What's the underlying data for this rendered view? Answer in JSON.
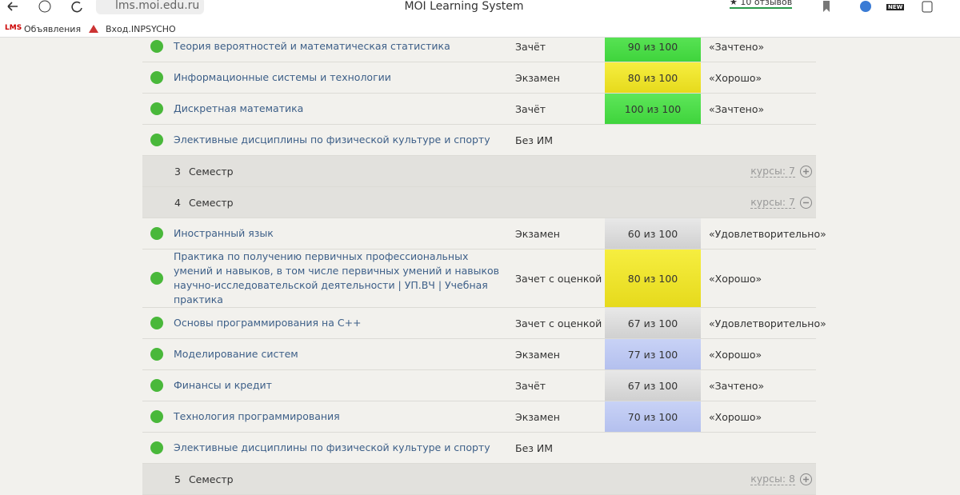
{
  "browser": {
    "url": "lms.moi.edu.ru",
    "tab_title": "MOI Learning System",
    "reviews": "★ 10 отзывов",
    "badge": "NEW",
    "bookmarks": [
      {
        "icon": "LMS",
        "label": "Объявления"
      },
      {
        "label": "Вход.INPSYCHO"
      }
    ]
  },
  "rows": [
    {
      "kind": "course",
      "name": "Теория вероятностей и математическая статистика",
      "control": "Зачёт",
      "score": "90 из 100",
      "grade": "«Зачтено»",
      "color": "green"
    },
    {
      "kind": "course",
      "name": "Информационные системы и технологии",
      "control": "Экзамен",
      "score": "80 из 100",
      "grade": "«Хорошо»",
      "color": "yellow"
    },
    {
      "kind": "course",
      "name": "Дискретная математика",
      "control": "Зачёт",
      "score": "100 из 100",
      "grade": "«Зачтено»",
      "color": "green"
    },
    {
      "kind": "course",
      "name": "Элективные дисциплины по физической культуре и спорту",
      "control": "Без ИМ"
    },
    {
      "kind": "semester",
      "number": "3",
      "label": "Семестр",
      "courses": "курсы: 7",
      "expanded": false
    },
    {
      "kind": "semester",
      "number": "4",
      "label": "Семестр",
      "courses": "курсы: 7",
      "expanded": true
    },
    {
      "kind": "course",
      "name": "Иностранный язык",
      "control": "Экзамен",
      "score": "60 из 100",
      "grade": "«Удовлетворительно»",
      "color": "gray"
    },
    {
      "kind": "course",
      "name": "Практика по получению первичных профессиональных умений и навыков, в том числе первичных умений и навыков научно-исследовательской деятельности | УП.ВЧ | Учебная практика",
      "control": "Зачет с оценкой",
      "score": "80 из 100",
      "grade": "«Хорошо»",
      "color": "yellow"
    },
    {
      "kind": "course",
      "name": "Основы программирования на С++",
      "control": "Зачет с оценкой",
      "score": "67 из 100",
      "grade": "«Удовлетворительно»",
      "color": "gray"
    },
    {
      "kind": "course",
      "name": "Моделирование систем",
      "control": "Экзамен",
      "score": "77 из 100",
      "grade": "«Хорошо»",
      "color": "blue"
    },
    {
      "kind": "course",
      "name": "Финансы и кредит",
      "control": "Зачёт",
      "score": "67 из 100",
      "grade": "«Зачтено»",
      "color": "gray"
    },
    {
      "kind": "course",
      "name": "Технология программирования",
      "control": "Экзамен",
      "score": "70 из 100",
      "grade": "«Хорошо»",
      "color": "blue"
    },
    {
      "kind": "course",
      "name": "Элективные дисциплины по физической культуре и спорту",
      "control": "Без ИМ"
    },
    {
      "kind": "semester",
      "number": "5",
      "label": "Семестр",
      "courses": "курсы: 8",
      "expanded": false
    }
  ]
}
